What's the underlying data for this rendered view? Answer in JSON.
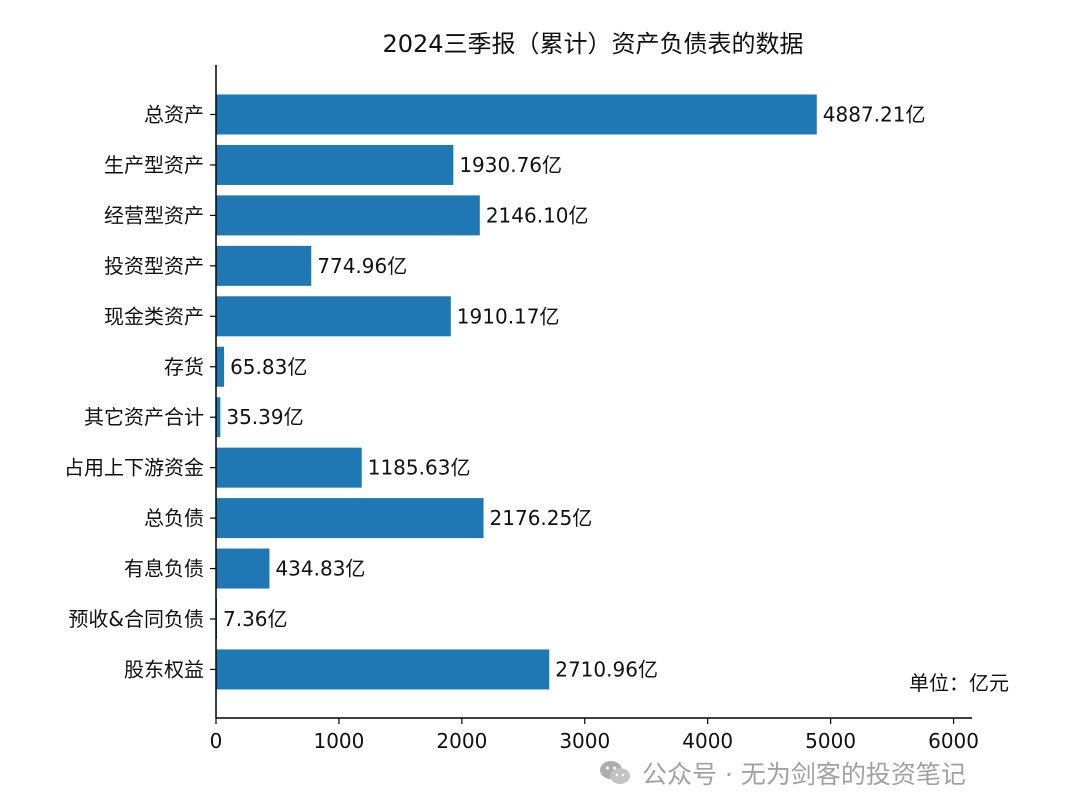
{
  "chart_data": {
    "type": "bar",
    "orientation": "horizontal",
    "title": "2024三季报（累计）资产负债表的数据",
    "categories": [
      "总资产",
      "生产型资产",
      "经营型资产",
      "投资型资产",
      "现金类资产",
      "存货",
      "其它资产合计",
      "占用上下游资金",
      "总负债",
      "有息负债",
      "预收&合同负债",
      "股东权益"
    ],
    "values": [
      4887.21,
      1930.76,
      2146.1,
      774.96,
      1910.17,
      65.83,
      35.39,
      1185.63,
      2176.25,
      434.83,
      7.36,
      2710.96
    ],
    "value_labels": [
      "4887.21亿",
      "1930.76亿",
      "2146.10亿",
      "774.96亿",
      "1910.17亿",
      "65.83亿",
      "35.39亿",
      "1185.63亿",
      "2176.25亿",
      "434.83亿",
      "7.36亿",
      "2710.96亿"
    ],
    "xlim": [
      0,
      6150
    ],
    "xticks": [
      0,
      1000,
      2000,
      3000,
      4000,
      5000,
      6000
    ],
    "xtick_labels": [
      "0",
      "1000",
      "2000",
      "3000",
      "4000",
      "5000",
      "6000"
    ],
    "xlabel": "",
    "ylabel": "",
    "grid": false,
    "bar_color": "#1f77b4",
    "unit_note": "单位：亿元"
  },
  "watermark": {
    "text": "公众号 · 无为剑客的投资笔记",
    "icon": "wechat-icon"
  }
}
